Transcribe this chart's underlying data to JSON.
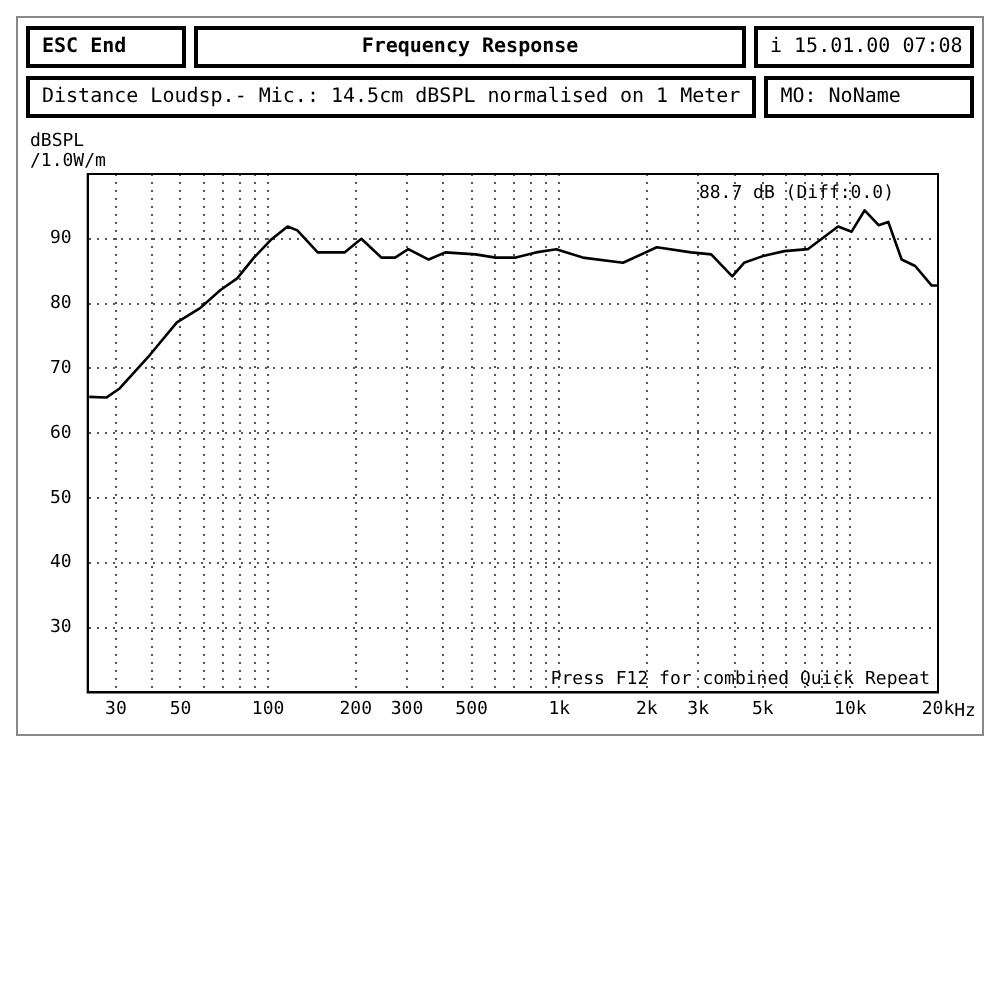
{
  "chart_data": {
    "type": "line",
    "title": "Frequency Response",
    "subtitle": "Distance Loudsp.- Mic.: 14.5cm dBSPL normalised on 1 Meter",
    "ylabel": "dBSPL\n/1.0W/m",
    "annotations": [
      "ESC End",
      "i 15.01.00 07:08",
      "MO: NoName",
      "88.7 dB (Diff:0.0)",
      "Press F12 for combined Quick Repeat"
    ],
    "x": [
      24.3,
      27.8,
      30.9,
      39.3,
      48.6,
      58.4,
      68.6,
      78.3,
      89.4,
      102,
      116.7,
      126,
      148,
      183,
      209,
      245,
      273,
      303,
      356,
      406,
      516,
      605,
      709,
      832,
      977,
      1205,
      1656,
      2164,
      2837,
      3326,
      3930,
      4313,
      5060,
      5939,
      7142,
      9076,
      10100,
      11200,
      12500,
      13500,
      15000,
      16700,
      19000,
      20000
    ],
    "series": [
      {
        "color": "#000000",
        "values": [
          65.6,
          65.5,
          66.9,
          72.1,
          77.1,
          79.3,
          82.1,
          83.9,
          87.1,
          89.8,
          91.9,
          91.3,
          87.9,
          87.9,
          90,
          87.1,
          87.1,
          88.4,
          86.8,
          87.9,
          87.6,
          87.1,
          87.1,
          87.9,
          88.4,
          87.1,
          86.3,
          88.7,
          87.9,
          87.6,
          84.2,
          86.3,
          87.4,
          88.1,
          88.4,
          91.9,
          91.1,
          94.4,
          92.1,
          92.6,
          86.8,
          85.8,
          82.8,
          82.8
        ]
      }
    ],
    "log": "x",
    "xlim": [
      24,
      20000
    ],
    "xticks": [
      {
        "value": 30,
        "label": "30"
      },
      {
        "value": 40,
        "label": null
      },
      {
        "value": 50,
        "label": "50"
      },
      {
        "value": 60,
        "label": null
      },
      {
        "value": 70,
        "label": null
      },
      {
        "value": 80,
        "label": null
      },
      {
        "value": 90,
        "label": null
      },
      {
        "value": 100,
        "label": "100"
      },
      {
        "value": 200,
        "label": "200"
      },
      {
        "value": 300,
        "label": "300"
      },
      {
        "value": 400,
        "label": null
      },
      {
        "value": 500,
        "label": "500"
      },
      {
        "value": 600,
        "label": null
      },
      {
        "value": 700,
        "label": null
      },
      {
        "value": 800,
        "label": null
      },
      {
        "value": 900,
        "label": null
      },
      {
        "value": 1000,
        "label": "1k"
      },
      {
        "value": 2000,
        "label": "2k"
      },
      {
        "value": 3000,
        "label": "3k"
      },
      {
        "value": 4000,
        "label": null
      },
      {
        "value": 5000,
        "label": "5k"
      },
      {
        "value": 6000,
        "label": null
      },
      {
        "value": 7000,
        "label": null
      },
      {
        "value": 8000,
        "label": null
      },
      {
        "value": 9000,
        "label": null
      },
      {
        "value": 10000,
        "label": "10k"
      },
      {
        "value": 20000,
        "label": "20k"
      }
    ],
    "xlabel": "Hz",
    "ylim": [
      20,
      100
    ],
    "yticks": [
      30,
      40,
      50,
      60,
      70,
      80,
      90
    ],
    "grid": true,
    "legend": false,
    "marker": "none",
    "line_style": "solid"
  }
}
